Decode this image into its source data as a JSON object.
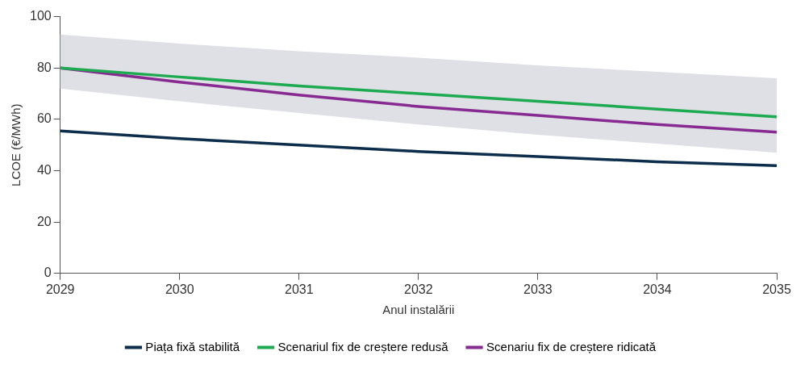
{
  "chart_data": {
    "type": "line",
    "xlabel": "Anul instalării",
    "ylabel": "LCOE (€/MWh)",
    "x": [
      2029,
      2030,
      2031,
      2032,
      2033,
      2034,
      2035
    ],
    "series": [
      {
        "name": "Piața fixă stabilită",
        "color": "#0d2d4c",
        "values": [
          55.5,
          52.5,
          50,
          47.5,
          45.5,
          43.5,
          42
        ]
      },
      {
        "name": "Scenariul fix de creștere redusă",
        "color": "#1eaa50",
        "values": [
          80,
          76.5,
          73,
          70,
          67,
          64,
          61
        ]
      },
      {
        "name": "Scenariu fix de creștere ridicată",
        "color": "#872a91",
        "values": [
          80,
          74.5,
          69.5,
          65,
          61.5,
          58,
          55
        ],
        "lower": [
          72,
          67,
          62.5,
          58,
          54,
          50.5,
          47
        ],
        "upper": [
          93,
          89.5,
          86.5,
          84,
          81,
          78.5,
          76
        ]
      }
    ],
    "xlim": [
      2029,
      2035
    ],
    "xticks": [
      2029,
      2030,
      2031,
      2032,
      2033,
      2034,
      2035
    ],
    "ylim": [
      0,
      100
    ],
    "yticks": [
      0,
      20,
      40,
      60,
      80,
      100
    ],
    "grid": false,
    "legend": "bottom",
    "marker": "none",
    "line_style": "solid"
  }
}
